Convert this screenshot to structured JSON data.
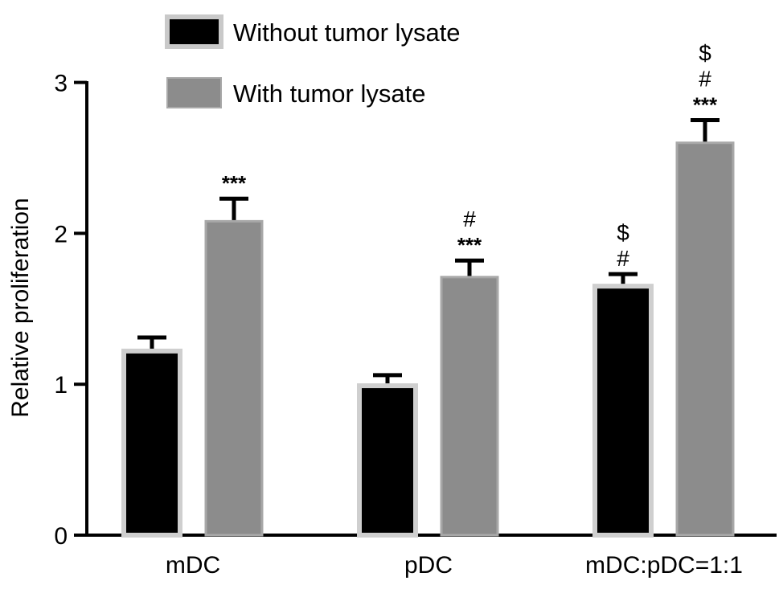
{
  "chart_data": {
    "type": "bar",
    "ylabel": "Relative proliferation",
    "xlabel": "",
    "ylim": [
      0,
      3
    ],
    "yticks": [
      "0",
      "1",
      "2",
      "3"
    ],
    "categories": [
      "mDC",
      "pDC",
      "mDC:pDC=1:1"
    ],
    "legend_position": "top-left",
    "series": [
      {
        "name": "Without tumor lysate",
        "color": "#000000",
        "values": [
          1.22,
          0.99,
          1.65
        ],
        "errors": [
          0.09,
          0.07,
          0.08
        ],
        "annotations": [
          [],
          [],
          [
            "#",
            "$"
          ]
        ]
      },
      {
        "name": "With tumor lysate",
        "color": "#8c8c8c",
        "values": [
          2.08,
          1.71,
          2.6
        ],
        "errors": [
          0.15,
          0.11,
          0.15
        ],
        "annotations": [
          [
            "***"
          ],
          [
            "***",
            "#"
          ],
          [
            "***",
            "#",
            "$"
          ]
        ]
      }
    ]
  }
}
